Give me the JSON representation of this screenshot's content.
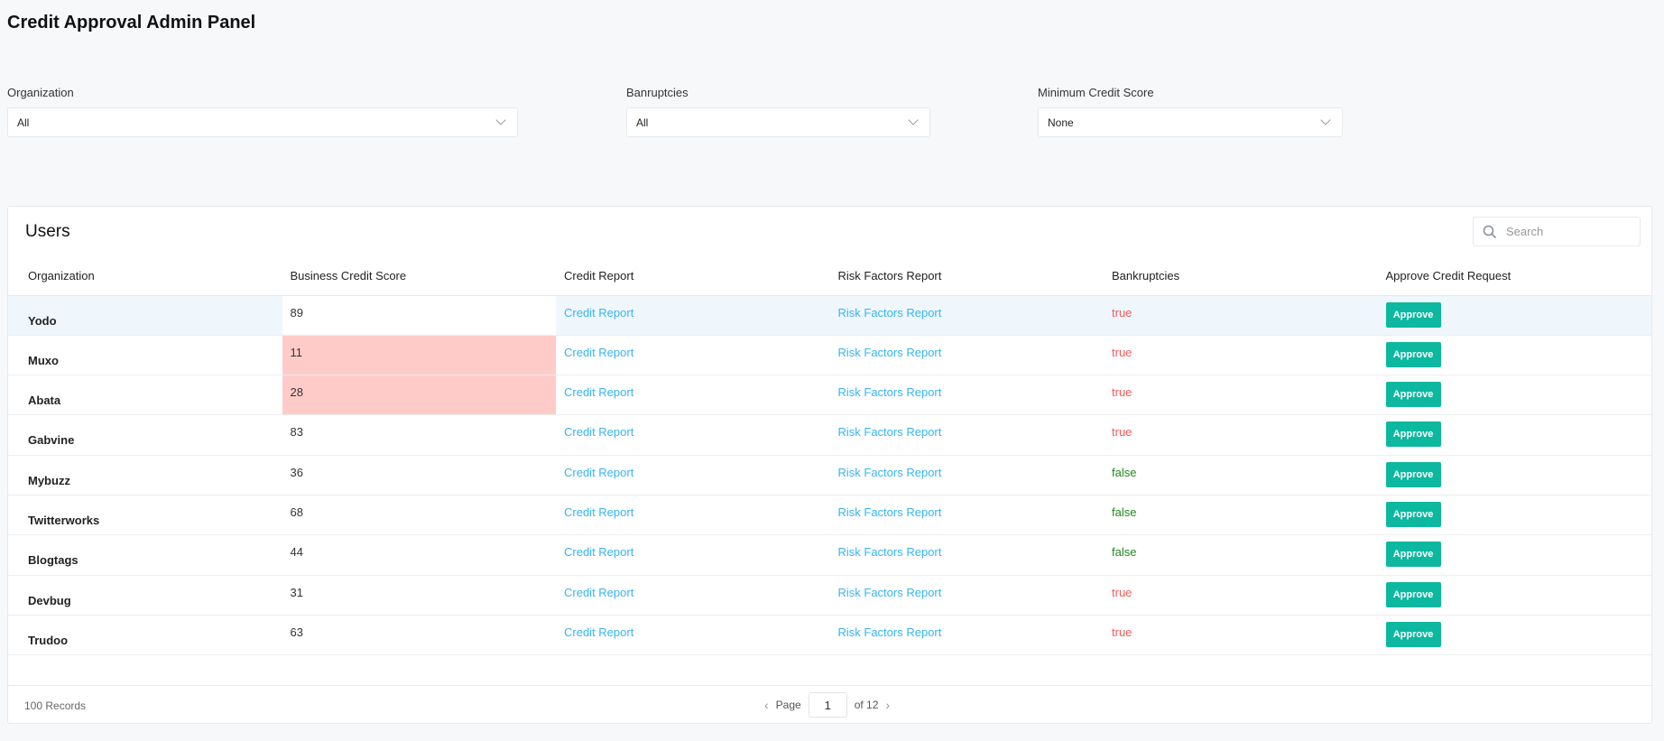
{
  "title": "Credit Approval Admin Panel",
  "filters": [
    {
      "label": "Organization",
      "value": "All"
    },
    {
      "label": "Banruptcies",
      "value": "All"
    },
    {
      "label": "Minimum Credit Score",
      "value": "None"
    }
  ],
  "card": {
    "title": "Users",
    "search_placeholder": "Search"
  },
  "columns": [
    "Organization",
    "Business Credit Score",
    "Credit Report",
    "Risk Factors Report",
    "Bankruptcies",
    "Approve Credit Request"
  ],
  "rows": [
    {
      "org": "Yodo",
      "score": "89",
      "credit": "Credit Report",
      "risk": "Risk Factors Report",
      "bankrupt": "true",
      "action": "Approve"
    },
    {
      "org": "Muxo",
      "score": "11",
      "credit": "Credit Report",
      "risk": "Risk Factors Report",
      "bankrupt": "true",
      "action": "Approve"
    },
    {
      "org": "Abata",
      "score": "28",
      "credit": "Credit Report",
      "risk": "Risk Factors Report",
      "bankrupt": "true",
      "action": "Approve"
    },
    {
      "org": "Gabvine",
      "score": "83",
      "credit": "Credit Report",
      "risk": "Risk Factors Report",
      "bankrupt": "true",
      "action": "Approve"
    },
    {
      "org": "Mybuzz",
      "score": "36",
      "credit": "Credit Report",
      "risk": "Risk Factors Report",
      "bankrupt": "false",
      "action": "Approve"
    },
    {
      "org": "Twitterworks",
      "score": "68",
      "credit": "Credit Report",
      "risk": "Risk Factors Report",
      "bankrupt": "false",
      "action": "Approve"
    },
    {
      "org": "Blogtags",
      "score": "44",
      "credit": "Credit Report",
      "risk": "Risk Factors Report",
      "bankrupt": "false",
      "action": "Approve"
    },
    {
      "org": "Devbug",
      "score": "31",
      "credit": "Credit Report",
      "risk": "Risk Factors Report",
      "bankrupt": "true",
      "action": "Approve"
    },
    {
      "org": "Trudoo",
      "score": "63",
      "credit": "Credit Report",
      "risk": "Risk Factors Report",
      "bankrupt": "true",
      "action": "Approve"
    }
  ],
  "highlighted_row": 0,
  "low_score_rows": [
    1,
    2
  ],
  "footer": {
    "records": "100 Records",
    "page_label": "Page",
    "page": "1",
    "of": "of 12"
  },
  "colors": {
    "accent": "#0cb89f",
    "link": "#36b5f2",
    "true": "#f05a5a",
    "false": "#1f8a1f",
    "low_score_bg": "#ffcbc8",
    "row_highlight": "#eff7fd"
  }
}
